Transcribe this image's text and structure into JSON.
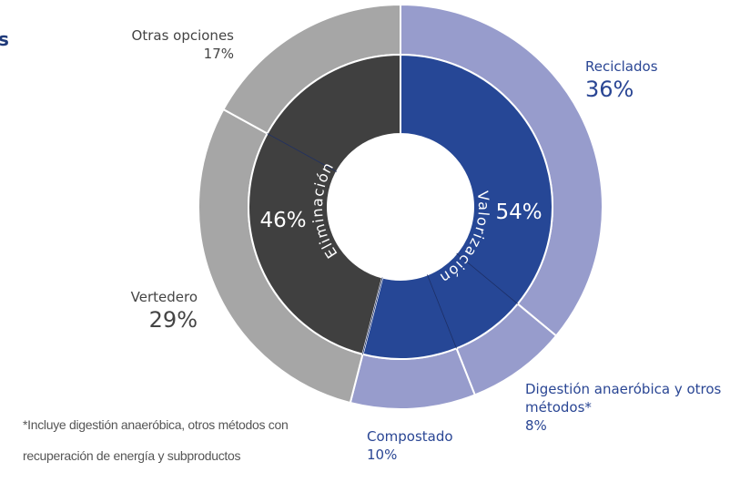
{
  "chart_data": {
    "type": "nested-donut",
    "title": "s",
    "outer": {
      "categories": [
        "Reciclados",
        "Digestión anaeróbica y otros métodos*",
        "Compostado",
        "Vertedero",
        "Otras opciones"
      ],
      "values": [
        36,
        8,
        10,
        29,
        17
      ],
      "value_labels": [
        "36%",
        "8%",
        "10%",
        "29%",
        "17%"
      ],
      "colors": [
        "#979ccc",
        "#979ccc",
        "#979ccc",
        "#a6a6a6",
        "#a6a6a6"
      ]
    },
    "inner": {
      "categories": [
        "Valorización",
        "Eliminación"
      ],
      "values": [
        54,
        46
      ],
      "value_labels": [
        "54%",
        "46%"
      ],
      "colors": [
        "#264796",
        "#404040"
      ]
    },
    "footnote": [
      "*Incluye digestión anaeróbica, otros métodos con",
      "recuperación de energía y subproductos"
    ]
  }
}
